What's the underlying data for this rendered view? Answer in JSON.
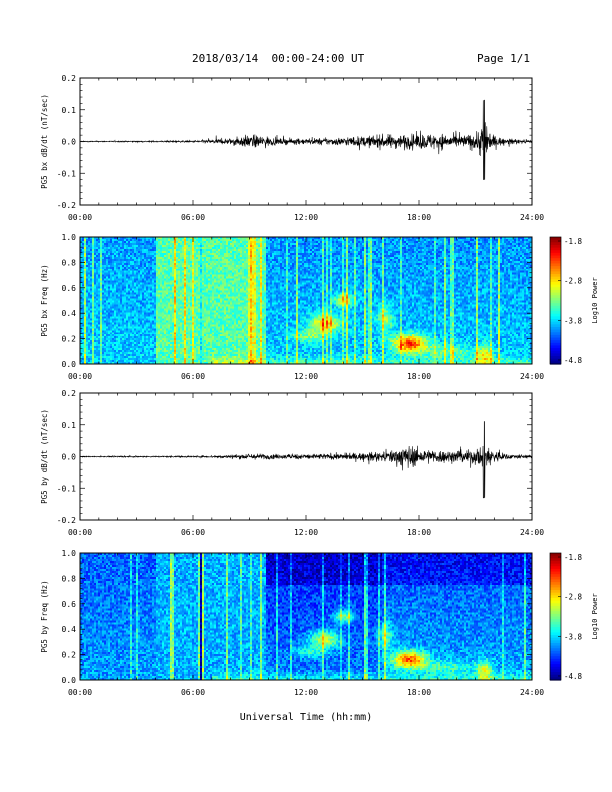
{
  "header": {
    "title": "2018/03/14  00:00-24:00 UT",
    "page": "Page 1/1"
  },
  "colorbar": {
    "ticks": [
      "-1.8",
      "-2.8",
      "-3.8",
      "-4.8"
    ],
    "label": "Log10 Power"
  },
  "xlabel": "Universal Time (hh:mm)",
  "chart_data": [
    {
      "type": "line",
      "ylabel": "PG5 bx dB/dt (nT/sec)",
      "xlim": [
        "00:00",
        "24:00"
      ],
      "xticks": [
        "00:00",
        "06:00",
        "12:00",
        "18:00",
        "24:00"
      ],
      "ylim": [
        -0.2,
        0.2
      ],
      "yticks": [
        "0.2",
        "0.1",
        "0.0",
        "-0.1",
        "-0.2"
      ],
      "envelope": {
        "x_hours": [
          0,
          3,
          6,
          7.2,
          8,
          9,
          9.8,
          10.5,
          12,
          13.5,
          15,
          16,
          17,
          18,
          19,
          20,
          21,
          21.4,
          21.8,
          22.5,
          24
        ],
        "amplitude": [
          0.003,
          0.004,
          0.006,
          0.015,
          0.022,
          0.045,
          0.038,
          0.02,
          0.02,
          0.025,
          0.035,
          0.045,
          0.048,
          0.05,
          0.055,
          0.04,
          0.055,
          0.13,
          0.05,
          0.02,
          0.01
        ]
      }
    },
    {
      "type": "heatmap",
      "ylabel": "PG5 bx Freq (Hz)",
      "xlim": [
        "00:00",
        "24:00"
      ],
      "xticks": [
        "00:00",
        "06:00",
        "12:00",
        "18:00",
        "24:00"
      ],
      "ylim": [
        0.0,
        1.0
      ],
      "yticks": [
        "1.0",
        "0.8",
        "0.6",
        "0.4",
        "0.2",
        "0.0"
      ],
      "zlim": [
        -4.8,
        -1.8
      ]
    },
    {
      "type": "line",
      "ylabel": "PG5 by dB/dt (nT/sec)",
      "xlim": [
        "00:00",
        "24:00"
      ],
      "xticks": [
        "00:00",
        "06:00",
        "12:00",
        "18:00",
        "24:00"
      ],
      "ylim": [
        -0.2,
        0.2
      ],
      "yticks": [
        "0.2",
        "0.1",
        "0.0",
        "-0.1",
        "-0.2"
      ],
      "envelope": {
        "x_hours": [
          0,
          3,
          6,
          7.2,
          8,
          9,
          9.8,
          10.5,
          12,
          13.5,
          15,
          16,
          17,
          17.5,
          18,
          19,
          20,
          21,
          21.4,
          21.8,
          22.5,
          24
        ],
        "amplitude": [
          0.003,
          0.004,
          0.005,
          0.008,
          0.012,
          0.02,
          0.018,
          0.015,
          0.018,
          0.02,
          0.025,
          0.03,
          0.06,
          0.08,
          0.05,
          0.045,
          0.04,
          0.05,
          0.11,
          0.06,
          0.02,
          0.01
        ]
      }
    },
    {
      "type": "heatmap",
      "ylabel": "PG5 by Freq (Hz)",
      "xlim": [
        "00:00",
        "24:00"
      ],
      "xticks": [
        "00:00",
        "06:00",
        "12:00",
        "18:00",
        "24:00"
      ],
      "ylim": [
        0.0,
        1.0
      ],
      "yticks": [
        "1.0",
        "0.8",
        "0.6",
        "0.4",
        "0.2",
        "0.0"
      ],
      "zlim": [
        -4.8,
        -1.8
      ]
    }
  ]
}
